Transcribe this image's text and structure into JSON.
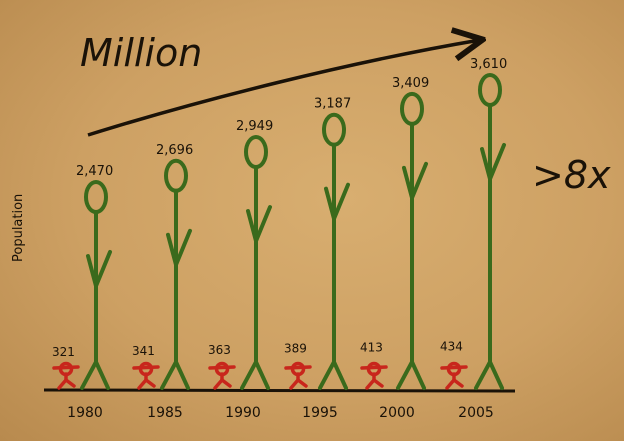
{
  "chart_data": {
    "type": "bar",
    "title": "Million",
    "ylabel": "Population",
    "annotation": ">8x",
    "categories": [
      "1980",
      "1985",
      "1990",
      "1995",
      "2000",
      "2005"
    ],
    "series": [
      {
        "values": [
          2470,
          2696,
          2949,
          3187,
          3409,
          3610
        ],
        "value_labels": [
          "2,470",
          "2,696",
          "2,949",
          "3,187",
          "3,409",
          "3,610"
        ],
        "color": "#3a6a1c"
      },
      {
        "values": [
          321,
          341,
          363,
          389,
          413,
          434
        ],
        "value_labels": [
          "321",
          "341",
          "363",
          "389",
          "413",
          "434"
        ],
        "color": "#c8261c"
      }
    ]
  }
}
